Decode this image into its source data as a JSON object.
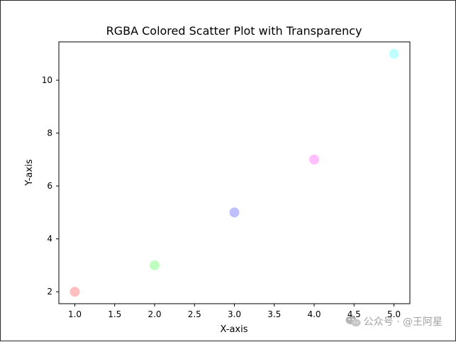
{
  "chart_data": {
    "type": "scatter",
    "title": "RGBA Colored Scatter Plot with Transparency",
    "xlabel": "X-axis",
    "ylabel": "Y-axis",
    "x": [
      1,
      2,
      3,
      4,
      5
    ],
    "y": [
      2,
      3,
      5,
      7,
      11
    ],
    "point_colors": [
      "#ff0000",
      "#00ff00",
      "#0000ff",
      "#ff00ff",
      "#00ffff"
    ],
    "point_alpha": 0.25,
    "xlim": [
      0.8,
      5.2
    ],
    "ylim": [
      1.55,
      11.45
    ],
    "xticks": [
      1.0,
      1.5,
      2.0,
      2.5,
      3.0,
      3.5,
      4.0,
      4.5,
      5.0
    ],
    "xtick_labels": [
      "1.0",
      "1.5",
      "2.0",
      "2.5",
      "3.0",
      "3.5",
      "4.0",
      "4.5",
      "5.0"
    ],
    "yticks": [
      2,
      4,
      6,
      8,
      10
    ],
    "ytick_labels": [
      "2",
      "4",
      "6",
      "8",
      "10"
    ],
    "grid": false,
    "legend": "none"
  },
  "watermark": {
    "icon": "wechat-icon",
    "text": "公众号 · @王阿星"
  }
}
